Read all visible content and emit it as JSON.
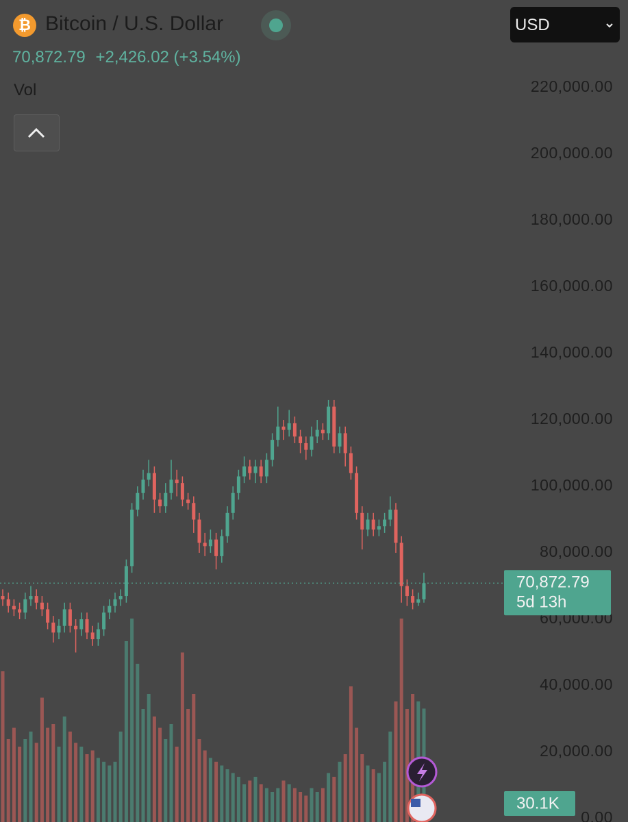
{
  "header": {
    "title": "Bitcoin / U.S. Dollar",
    "change_label": "+2,426.02 (+3.54%)",
    "indicator": "Vol",
    "currency": "USD"
  },
  "chart_data": {
    "type": "candlestick",
    "last_price_label": "70,872.79",
    "countdown": "5d 13h",
    "last_volume_label": "30.1K",
    "up_color": "#4fa58f",
    "down_color": "#e0645f",
    "ylim": [
      0,
      246400
    ],
    "yticks": [
      {
        "value": 0,
        "label": "0.00"
      },
      {
        "value": 20000,
        "label": "20,000.00"
      },
      {
        "value": 40000,
        "label": "40,000.00"
      },
      {
        "value": 60000,
        "label": "60,000.00"
      },
      {
        "value": 80000,
        "label": "80,000.00"
      },
      {
        "value": 100000,
        "label": "100,000.00"
      },
      {
        "value": 120000,
        "label": "120,000.00"
      },
      {
        "value": 140000,
        "label": "140,000.00"
      },
      {
        "value": 160000,
        "label": "160,000.00"
      },
      {
        "value": 180000,
        "label": "180,000.00"
      },
      {
        "value": 200000,
        "label": "200,000.00"
      },
      {
        "value": 220000,
        "label": "220,000.00"
      }
    ],
    "vlim": [
      0,
      60000
    ],
    "open": [
      67000,
      66000,
      64000,
      63000,
      62000,
      66000,
      67000,
      65000,
      63000,
      59000,
      56000,
      58000,
      63000,
      58000,
      57000,
      60000,
      56000,
      54000,
      57000,
      62000,
      64000,
      66000,
      67000,
      76000,
      93000,
      98000,
      102000,
      104000,
      96000,
      94000,
      98000,
      102000,
      101000,
      96000,
      95000,
      90000,
      83000,
      82000,
      84000,
      79000,
      85000,
      92000,
      98000,
      103000,
      106000,
      104000,
      106000,
      103000,
      108000,
      114000,
      118000,
      117000,
      119000,
      115000,
      113000,
      111000,
      115000,
      117000,
      116000,
      124000,
      112000,
      116000,
      110000,
      104000,
      92000,
      87000,
      90000,
      87000,
      88000,
      90000,
      93000,
      83000,
      70000,
      67000,
      65000,
      66000
    ],
    "high": [
      69000,
      68000,
      66000,
      65000,
      68000,
      70000,
      69000,
      67000,
      65000,
      61000,
      60000,
      65000,
      65000,
      60000,
      62000,
      62000,
      58000,
      59000,
      64000,
      66000,
      68000,
      69000,
      78000,
      95000,
      100000,
      105000,
      108000,
      106000,
      98000,
      101000,
      108000,
      105000,
      103000,
      98000,
      97000,
      92000,
      86000,
      87000,
      86000,
      87000,
      94000,
      100000,
      105000,
      109000,
      108000,
      108000,
      108000,
      110000,
      116000,
      124000,
      120000,
      123000,
      121000,
      117000,
      115000,
      118000,
      120000,
      119000,
      126000,
      126000,
      118000,
      118000,
      112000,
      106000,
      94000,
      92000,
      92000,
      90000,
      92000,
      97000,
      95000,
      85000,
      72000,
      69000,
      68000,
      74000
    ],
    "low": [
      64000,
      62000,
      61000,
      60000,
      60000,
      64000,
      63000,
      61000,
      57000,
      53000,
      54000,
      56000,
      56000,
      50000,
      55000,
      54000,
      52000,
      52000,
      55000,
      60000,
      62000,
      64000,
      65000,
      74000,
      91000,
      96000,
      100000,
      92000,
      92000,
      92000,
      96000,
      97000,
      94000,
      93000,
      86000,
      80000,
      79000,
      80000,
      75000,
      77000,
      83000,
      90000,
      96000,
      101000,
      102000,
      101000,
      101000,
      101000,
      106000,
      112000,
      114000,
      115000,
      113000,
      110000,
      108000,
      109000,
      113000,
      114000,
      114000,
      110000,
      110000,
      106000,
      102000,
      90000,
      81000,
      85000,
      85000,
      85000,
      86000,
      88000,
      80000,
      65000,
      64000,
      63000,
      64000,
      65000
    ],
    "close": [
      66000,
      64000,
      63000,
      62000,
      66000,
      67000,
      65000,
      63000,
      59000,
      56000,
      58000,
      63000,
      58000,
      57000,
      60000,
      56000,
      54000,
      57000,
      62000,
      64000,
      66000,
      67000,
      76000,
      93000,
      98000,
      102000,
      104000,
      96000,
      94000,
      98000,
      102000,
      101000,
      96000,
      95000,
      90000,
      83000,
      82000,
      84000,
      79000,
      85000,
      92000,
      98000,
      103000,
      106000,
      104000,
      106000,
      103000,
      108000,
      114000,
      118000,
      117000,
      119000,
      115000,
      113000,
      111000,
      115000,
      117000,
      116000,
      124000,
      112000,
      116000,
      110000,
      104000,
      92000,
      87000,
      90000,
      87000,
      88000,
      90000,
      93000,
      83000,
      70000,
      67000,
      65000,
      66000,
      70872.79
    ],
    "volume": [
      40000,
      22000,
      25000,
      20000,
      22000,
      24000,
      21000,
      33000,
      25000,
      26000,
      20000,
      28000,
      24000,
      21000,
      20000,
      18000,
      19000,
      17000,
      16000,
      15000,
      16000,
      24000,
      48000,
      54000,
      42000,
      30000,
      34000,
      28000,
      25000,
      22000,
      26000,
      20000,
      45000,
      30000,
      34000,
      22000,
      19000,
      17000,
      16000,
      15000,
      14000,
      13000,
      12000,
      10000,
      11000,
      12000,
      10000,
      9000,
      8000,
      9000,
      11000,
      10000,
      9000,
      8000,
      7000,
      9000,
      8000,
      9000,
      13000,
      12000,
      16000,
      18000,
      36000,
      25000,
      18000,
      15000,
      14000,
      13000,
      16000,
      24000,
      32000,
      54000,
      30000,
      34000,
      32000,
      30100
    ]
  }
}
